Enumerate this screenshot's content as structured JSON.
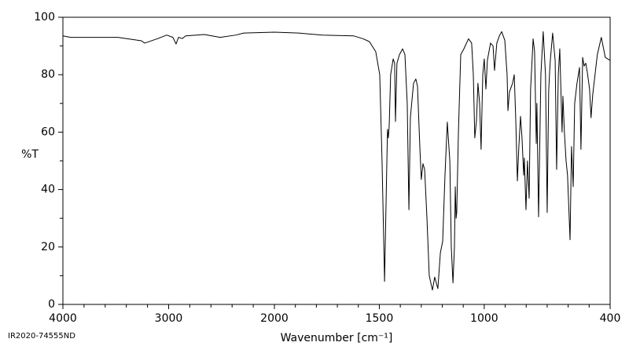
{
  "chart_data": {
    "type": "line",
    "ylabel": "%T",
    "xlabel": "Wavenumber [cm⁻¹]",
    "footnote": "IR2020-74555ND",
    "xlim": [
      4000,
      400
    ],
    "xbreak": 2000,
    "ylim": [
      0,
      100
    ],
    "xticks": [
      4000,
      3000,
      2000,
      1500,
      1000,
      400
    ],
    "xminorticks": [
      3800,
      3600,
      3400,
      3200,
      2800,
      2600,
      2400,
      2200,
      1900,
      1800,
      1700,
      1600,
      1400,
      1300,
      1200,
      1100,
      900,
      800,
      700,
      600,
      500
    ],
    "yticks": [
      0,
      20,
      40,
      60,
      80,
      100
    ],
    "yminorticks": [
      10,
      30,
      50,
      70,
      90
    ],
    "color": "#000000",
    "x": [
      4000,
      3926,
      3480,
      3257,
      3227,
      3108,
      3019,
      2960,
      2930,
      2907,
      2870,
      2840,
      2662,
      2513,
      2364,
      2290,
      2000,
      1884,
      1771,
      1621,
      1577,
      1547,
      1517,
      1498,
      1487,
      1475,
      1464,
      1461,
      1457,
      1453,
      1446,
      1434,
      1427,
      1423,
      1416,
      1404,
      1389,
      1378,
      1367,
      1359,
      1352,
      1337,
      1326,
      1318,
      1307,
      1300,
      1292,
      1284,
      1273,
      1262,
      1247,
      1236,
      1221,
      1209,
      1198,
      1187,
      1176,
      1164,
      1157,
      1149,
      1142,
      1138,
      1134,
      1131,
      1123,
      1112,
      1097,
      1075,
      1060,
      1052,
      1045,
      1037,
      1030,
      1022,
      1015,
      1007,
      1000,
      992,
      985,
      970,
      958,
      951,
      940,
      928,
      917,
      902,
      891,
      887,
      880,
      865,
      857,
      850,
      842,
      835,
      827,
      820,
      812,
      809,
      801,
      794,
      786,
      779,
      767,
      760,
      752,
      749,
      741,
      730,
      719,
      708,
      700,
      693,
      689,
      685,
      674,
      662,
      655,
      647,
      640,
      629,
      625,
      618,
      610,
      603,
      591,
      584,
      576,
      569,
      558,
      546,
      539,
      531,
      524,
      516,
      509,
      498,
      491,
      483,
      461,
      442,
      423,
      400
    ],
    "values": [
      93.5,
      93,
      93,
      91.8,
      91,
      92.5,
      93.8,
      93,
      90.7,
      93,
      92.6,
      93.5,
      94,
      93,
      93.8,
      94.5,
      94.8,
      94.5,
      93.8,
      93.5,
      92.5,
      91.5,
      88,
      80,
      50,
      8,
      50,
      61,
      58,
      62,
      80,
      85.5,
      84,
      63.7,
      84,
      87,
      89,
      87,
      70,
      33,
      65,
      77,
      78.5,
      76,
      55,
      43.5,
      49,
      47,
      30,
      10,
      5,
      9.5,
      5.5,
      18,
      22,
      45,
      63.5,
      50,
      20,
      7.5,
      20,
      41,
      30,
      32,
      60,
      87,
      89,
      92.5,
      91,
      80,
      58,
      64,
      77,
      70,
      54,
      80,
      85.5,
      75,
      85,
      91,
      90,
      81.5,
      91,
      93.5,
      95,
      92,
      80,
      67.5,
      74,
      77,
      80,
      65,
      43,
      55,
      65.5,
      58,
      45,
      51,
      33,
      50,
      37,
      75,
      92.5,
      88,
      56,
      70,
      30.5,
      80,
      95,
      80,
      32,
      74,
      80,
      85,
      94.5,
      85,
      47,
      80,
      89,
      60,
      72.5,
      60,
      50,
      45,
      22.5,
      55,
      41,
      70,
      77,
      82.5,
      54,
      86,
      83,
      84,
      81,
      75,
      65,
      73,
      87,
      93,
      86,
      85
    ]
  }
}
